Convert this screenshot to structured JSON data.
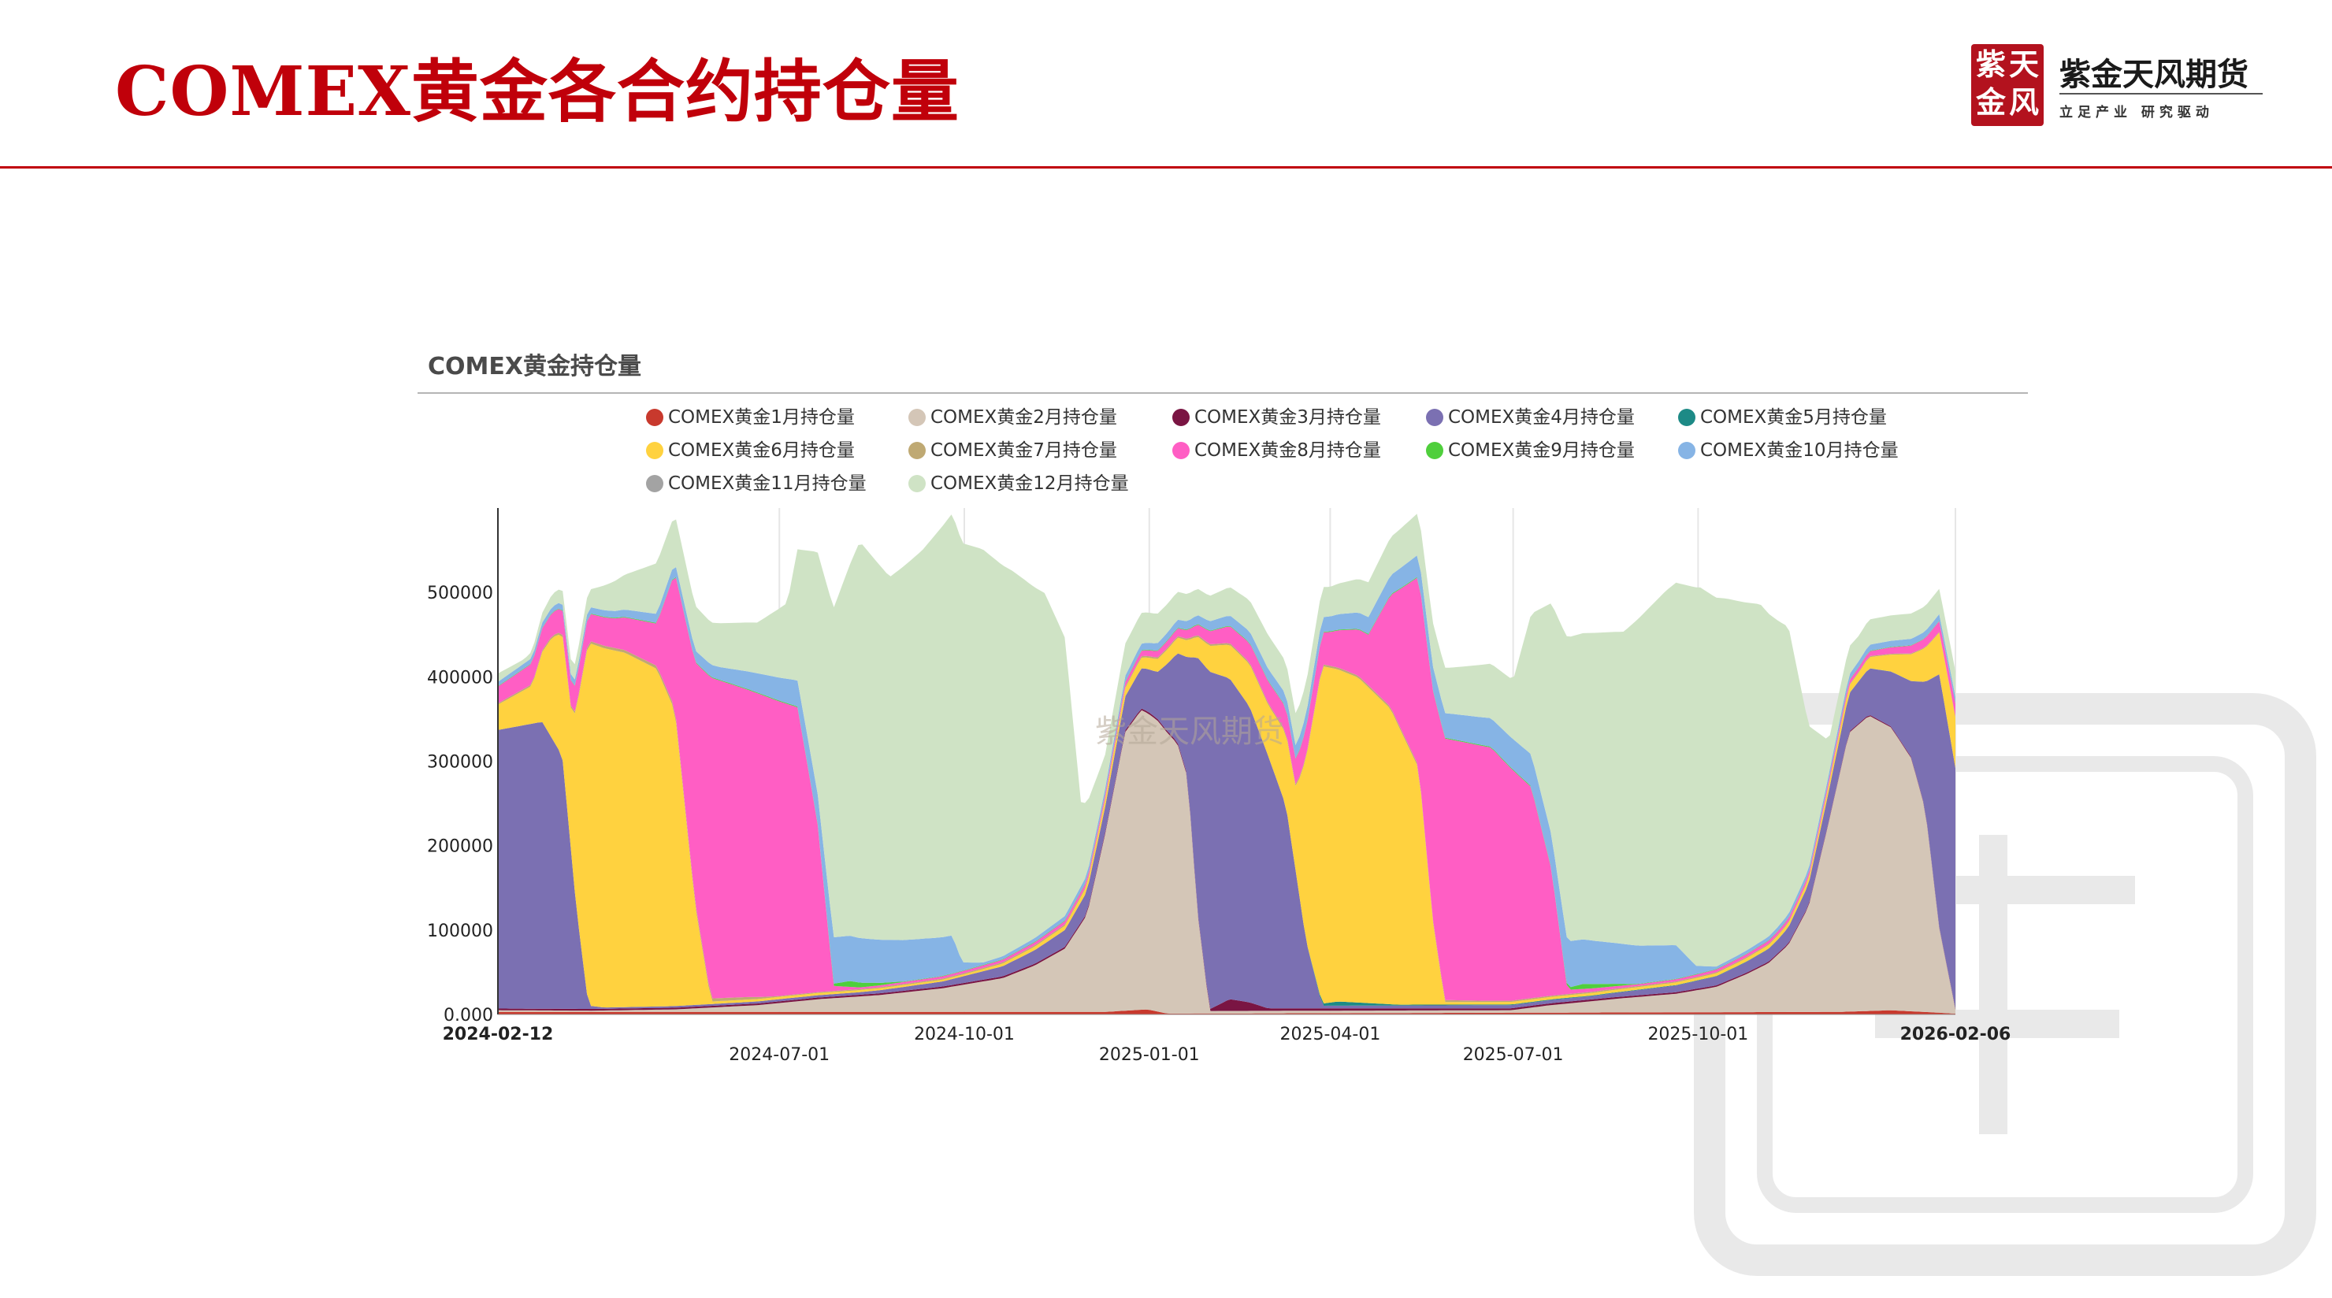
{
  "slide": {
    "title": "COMEX黄金各合约持仓量"
  },
  "logo": {
    "seal_chars": [
      "紫",
      "天",
      "金",
      "风"
    ],
    "brand": "紫金天风期货",
    "slogan": "立足产业 研究驱动"
  },
  "watermark": {
    "chart": "紫金天风期货"
  },
  "colors": {
    "accent": "#c0000a",
    "grid": "#e6e6e6"
  },
  "chart_data": {
    "type": "area",
    "stacked": true,
    "title": "COMEX黄金持仓量",
    "xlabel": "",
    "ylabel": "",
    "ylim": [
      0,
      600000
    ],
    "yticks": [
      0,
      100000,
      200000,
      300000,
      400000,
      500000
    ],
    "ytick_labels": [
      "0.000",
      "100000",
      "200000",
      "300000",
      "400000",
      "500000"
    ],
    "xlim": [
      "2024-02-12",
      "2026-02-06"
    ],
    "xticks": [
      {
        "date": "2024-02-12",
        "label": "2024-02-12",
        "row": 0,
        "bold": true
      },
      {
        "date": "2024-07-01",
        "label": "2024-07-01",
        "row": 1,
        "bold": false
      },
      {
        "date": "2024-10-01",
        "label": "2024-10-01",
        "row": 0,
        "bold": false
      },
      {
        "date": "2025-01-01",
        "label": "2025-01-01",
        "row": 1,
        "bold": false
      },
      {
        "date": "2025-04-01",
        "label": "2025-04-01",
        "row": 0,
        "bold": false
      },
      {
        "date": "2025-07-01",
        "label": "2025-07-01",
        "row": 1,
        "bold": false
      },
      {
        "date": "2025-10-01",
        "label": "2025-10-01",
        "row": 0,
        "bold": false
      },
      {
        "date": "2026-02-06",
        "label": "2026-02-06",
        "row": 0,
        "bold": true
      }
    ],
    "grid": {
      "vertical": true,
      "horizontal": false
    },
    "legend_position": "top",
    "series": [
      {
        "name": "COMEX黄金1月持仓量",
        "color": "#c8392d",
        "points": [
          [
            "2024-02-12",
            3000
          ],
          [
            "2024-12-10",
            3000
          ],
          [
            "2024-12-31",
            6000
          ],
          [
            "2025-01-10",
            1000
          ],
          [
            "2025-12-10",
            3000
          ],
          [
            "2026-01-05",
            5000
          ],
          [
            "2026-02-06",
            1000
          ]
        ]
      },
      {
        "name": "COMEX黄金2月持仓量",
        "color": "#d4c6b7",
        "points": [
          [
            "2024-02-12",
            2000
          ],
          [
            "2024-03-30",
            1500
          ],
          [
            "2024-05-10",
            3000
          ],
          [
            "2024-06-20",
            8000
          ],
          [
            "2024-07-20",
            15000
          ],
          [
            "2024-08-20",
            20000
          ],
          [
            "2024-09-20",
            28000
          ],
          [
            "2024-10-20",
            40000
          ],
          [
            "2024-11-05",
            55000
          ],
          [
            "2024-11-20",
            75000
          ],
          [
            "2024-12-01",
            115000
          ],
          [
            "2024-12-10",
            210000
          ],
          [
            "2024-12-20",
            330000
          ],
          [
            "2024-12-28",
            355000
          ],
          [
            "2025-01-05",
            345000
          ],
          [
            "2025-01-15",
            320000
          ],
          [
            "2025-01-20",
            280000
          ],
          [
            "2025-01-25",
            120000
          ],
          [
            "2025-01-31",
            3000
          ],
          [
            "2025-06-30",
            3000
          ],
          [
            "2025-07-20",
            9000
          ],
          [
            "2025-08-20",
            16000
          ],
          [
            "2025-09-20",
            22000
          ],
          [
            "2025-10-10",
            30000
          ],
          [
            "2025-10-25",
            45000
          ],
          [
            "2025-11-05",
            58000
          ],
          [
            "2025-11-15",
            80000
          ],
          [
            "2025-11-25",
            125000
          ],
          [
            "2025-12-05",
            225000
          ],
          [
            "2025-12-15",
            330000
          ],
          [
            "2025-12-25",
            350000
          ],
          [
            "2026-01-05",
            335000
          ],
          [
            "2026-01-15",
            300000
          ],
          [
            "2026-01-22",
            240000
          ],
          [
            "2026-01-29",
            100000
          ],
          [
            "2026-02-06",
            5000
          ]
        ]
      },
      {
        "name": "COMEX黄金3月持仓量",
        "color": "#7a1543",
        "points": [
          [
            "2024-02-12",
            2000
          ],
          [
            "2025-01-31",
            2000
          ],
          [
            "2025-02-10",
            14000
          ],
          [
            "2025-02-20",
            10000
          ],
          [
            "2025-03-01",
            3000
          ],
          [
            "2026-02-06",
            1000
          ]
        ]
      },
      {
        "name": "COMEX黄金4月持仓量",
        "color": "#7b70b2",
        "points": [
          [
            "2024-02-12",
            330000
          ],
          [
            "2024-03-05",
            340000
          ],
          [
            "2024-03-15",
            300000
          ],
          [
            "2024-03-22",
            120000
          ],
          [
            "2024-03-28",
            4000
          ],
          [
            "2024-04-05",
            1500
          ],
          [
            "2024-08-10",
            3000
          ],
          [
            "2024-09-20",
            6000
          ],
          [
            "2024-10-20",
            12000
          ],
          [
            "2024-11-20",
            20000
          ],
          [
            "2024-12-10",
            30000
          ],
          [
            "2024-12-20",
            40000
          ],
          [
            "2025-01-05",
            55000
          ],
          [
            "2025-01-10",
            80000
          ],
          [
            "2025-01-15",
            105000
          ],
          [
            "2025-01-20",
            140000
          ],
          [
            "2025-01-25",
            300000
          ],
          [
            "2025-01-31",
            400000
          ],
          [
            "2025-02-10",
            380000
          ],
          [
            "2025-02-20",
            350000
          ],
          [
            "2025-03-01",
            300000
          ],
          [
            "2025-03-10",
            240000
          ],
          [
            "2025-03-20",
            80000
          ],
          [
            "2025-03-28",
            3000
          ],
          [
            "2025-08-10",
            4000
          ],
          [
            "2025-09-20",
            8000
          ],
          [
            "2025-10-20",
            12000
          ],
          [
            "2025-11-10",
            16000
          ],
          [
            "2025-11-25",
            25000
          ],
          [
            "2025-12-10",
            40000
          ],
          [
            "2025-12-20",
            50000
          ],
          [
            "2026-01-05",
            65000
          ],
          [
            "2026-01-15",
            90000
          ],
          [
            "2026-01-22",
            150000
          ],
          [
            "2026-01-29",
            300000
          ],
          [
            "2026-02-06",
            285000
          ]
        ]
      },
      {
        "name": "COMEX黄金5月持仓量",
        "color": "#1d8a86",
        "points": [
          [
            "2024-02-12",
            0
          ],
          [
            "2025-03-20",
            0
          ],
          [
            "2025-04-05",
            5000
          ],
          [
            "2025-04-20",
            3000
          ],
          [
            "2025-05-05",
            1000
          ],
          [
            "2026-02-06",
            0
          ]
        ]
      },
      {
        "name": "COMEX黄金6月持仓量",
        "color": "#ffd23f",
        "points": [
          [
            "2024-02-12",
            30000
          ],
          [
            "2024-02-29",
            45000
          ],
          [
            "2024-03-10",
            120000
          ],
          [
            "2024-03-20",
            170000
          ],
          [
            "2024-03-28",
            430000
          ],
          [
            "2024-04-15",
            420000
          ],
          [
            "2024-05-01",
            400000
          ],
          [
            "2024-05-10",
            350000
          ],
          [
            "2024-05-20",
            120000
          ],
          [
            "2024-05-28",
            3000
          ],
          [
            "2024-10-01",
            2000
          ],
          [
            "2024-11-20",
            5000
          ],
          [
            "2024-12-20",
            10000
          ],
          [
            "2025-01-20",
            20000
          ],
          [
            "2025-02-10",
            40000
          ],
          [
            "2025-03-01",
            60000
          ],
          [
            "2025-03-15",
            100000
          ],
          [
            "2025-03-28",
            400000
          ],
          [
            "2025-04-15",
            385000
          ],
          [
            "2025-05-01",
            350000
          ],
          [
            "2025-05-15",
            280000
          ],
          [
            "2025-05-22",
            100000
          ],
          [
            "2025-05-28",
            3000
          ],
          [
            "2025-10-01",
            3000
          ],
          [
            "2025-11-20",
            5000
          ],
          [
            "2025-12-20",
            10000
          ],
          [
            "2026-01-05",
            20000
          ],
          [
            "2026-01-22",
            40000
          ],
          [
            "2026-02-06",
            60000
          ]
        ]
      },
      {
        "name": "COMEX黄金7月持仓量",
        "color": "#bfa973",
        "points": [
          [
            "2024-02-12",
            1500
          ],
          [
            "2024-05-20",
            4000
          ],
          [
            "2024-06-15",
            3000
          ],
          [
            "2024-07-01",
            1000
          ],
          [
            "2025-05-25",
            2500
          ],
          [
            "2025-06-15",
            1500
          ],
          [
            "2026-02-06",
            1000
          ]
        ]
      },
      {
        "name": "COMEX黄金8月持仓量",
        "color": "#ff5ec4",
        "points": [
          [
            "2024-02-12",
            20000
          ],
          [
            "2024-03-20",
            30000
          ],
          [
            "2024-04-10",
            35000
          ],
          [
            "2024-05-01",
            50000
          ],
          [
            "2024-05-28",
            380000
          ],
          [
            "2024-06-20",
            360000
          ],
          [
            "2024-07-10",
            340000
          ],
          [
            "2024-07-20",
            200000
          ],
          [
            "2024-07-28",
            6000
          ],
          [
            "2024-08-10",
            2000
          ],
          [
            "2024-10-20",
            3000
          ],
          [
            "2024-12-20",
            5000
          ],
          [
            "2025-01-20",
            10000
          ],
          [
            "2025-02-10",
            20000
          ],
          [
            "2025-03-15",
            30000
          ],
          [
            "2025-04-01",
            40000
          ],
          [
            "2025-04-20",
            60000
          ],
          [
            "2025-05-28",
            310000
          ],
          [
            "2025-06-20",
            300000
          ],
          [
            "2025-07-10",
            250000
          ],
          [
            "2025-07-20",
            150000
          ],
          [
            "2025-07-28",
            5000
          ],
          [
            "2025-09-01",
            2000
          ],
          [
            "2025-12-20",
            5000
          ],
          [
            "2026-01-20",
            10000
          ],
          [
            "2026-02-06",
            15000
          ]
        ]
      },
      {
        "name": "COMEX黄金9月持仓量",
        "color": "#4fcf3c",
        "points": [
          [
            "2024-02-12",
            500
          ],
          [
            "2024-07-25",
            1000
          ],
          [
            "2024-08-05",
            7000
          ],
          [
            "2024-08-20",
            3000
          ],
          [
            "2024-09-01",
            500
          ],
          [
            "2025-07-25",
            1000
          ],
          [
            "2025-08-05",
            6000
          ],
          [
            "2025-08-20",
            3000
          ],
          [
            "2025-09-01",
            500
          ],
          [
            "2026-02-06",
            500
          ]
        ]
      },
      {
        "name": "COMEX黄金10月持仓量",
        "color": "#86b4e5",
        "points": [
          [
            "2024-02-12",
            5000
          ],
          [
            "2024-04-10",
            8000
          ],
          [
            "2024-06-01",
            15000
          ],
          [
            "2024-07-20",
            35000
          ],
          [
            "2024-07-28",
            55000
          ],
          [
            "2024-09-25",
            45000
          ],
          [
            "2024-09-30",
            10000
          ],
          [
            "2024-10-10",
            3000
          ],
          [
            "2024-12-20",
            7000
          ],
          [
            "2025-01-20",
            10000
          ],
          [
            "2025-03-10",
            15000
          ],
          [
            "2025-04-20",
            20000
          ],
          [
            "2025-06-01",
            30000
          ],
          [
            "2025-07-20",
            40000
          ],
          [
            "2025-07-28",
            55000
          ],
          [
            "2025-09-20",
            40000
          ],
          [
            "2025-09-30",
            10000
          ],
          [
            "2025-10-10",
            3000
          ],
          [
            "2025-12-20",
            7000
          ],
          [
            "2026-02-06",
            8000
          ]
        ]
      },
      {
        "name": "COMEX黄金11月持仓量",
        "color": "#a3a3a3",
        "points": [
          [
            "2024-02-12",
            0
          ],
          [
            "2026-02-06",
            0
          ]
        ]
      },
      {
        "name": "COMEX黄金12月持仓量",
        "color": "#cfe3c5",
        "points": [
          [
            "2024-02-12",
            10000
          ],
          [
            "2024-02-25",
            5000
          ],
          [
            "2024-03-10",
            15000
          ],
          [
            "2024-03-28",
            20000
          ],
          [
            "2024-05-01",
            60000
          ],
          [
            "2024-05-28",
            50000
          ],
          [
            "2024-06-20",
            60000
          ],
          [
            "2024-07-05",
            90000
          ],
          [
            "2024-07-28",
            390000
          ],
          [
            "2024-08-10",
            470000
          ],
          [
            "2024-08-25",
            430000
          ],
          [
            "2024-09-10",
            460000
          ],
          [
            "2024-09-25",
            500000
          ],
          [
            "2024-10-10",
            490000
          ],
          [
            "2024-10-25",
            450000
          ],
          [
            "2024-11-10",
            400000
          ],
          [
            "2024-11-20",
            330000
          ],
          [
            "2024-11-28",
            100000
          ],
          [
            "2024-12-10",
            40000
          ],
          [
            "2025-01-31",
            30000
          ],
          [
            "2025-03-01",
            40000
          ],
          [
            "2025-04-01",
            35000
          ],
          [
            "2025-05-01",
            45000
          ],
          [
            "2025-06-01",
            55000
          ],
          [
            "2025-07-01",
            70000
          ],
          [
            "2025-07-28",
            360000
          ],
          [
            "2025-08-25",
            370000
          ],
          [
            "2025-09-15",
            420000
          ],
          [
            "2025-10-01",
            450000
          ],
          [
            "2025-10-15",
            430000
          ],
          [
            "2025-11-01",
            400000
          ],
          [
            "2025-11-15",
            340000
          ],
          [
            "2025-11-25",
            170000
          ],
          [
            "2025-12-05",
            40000
          ],
          [
            "2025-12-20",
            30000
          ],
          [
            "2026-01-10",
            30000
          ],
          [
            "2026-02-06",
            30000
          ]
        ]
      }
    ]
  }
}
